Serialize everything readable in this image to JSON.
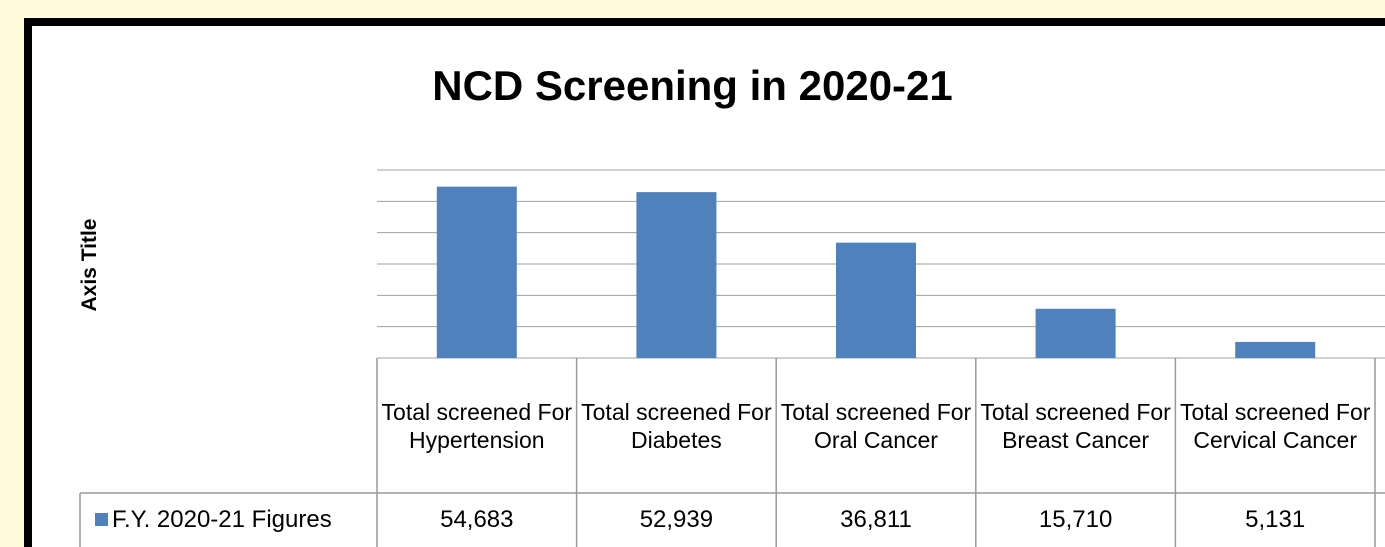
{
  "chart_data": {
    "type": "bar",
    "title": "NCD Screening in 2020-21",
    "y_axis_title": "Axis Title",
    "categories": [
      "Total screened For Hypertension",
      "Total screened For Diabetes",
      "Total screened For Oral Cancer",
      "Total screened For Breast Cancer",
      "Total screened For Cervical Cancer"
    ],
    "series": [
      {
        "name": "F.Y. 2020-21 Figures",
        "color": "#4f81bd",
        "values": [
          54683,
          52939,
          36811,
          15710,
          5131
        ],
        "value_labels": [
          "54,683",
          "52,939",
          "36,811",
          "15,710",
          "5,131"
        ]
      }
    ],
    "ylim": [
      0,
      60000
    ],
    "yticks": [
      0,
      10000,
      20000,
      30000,
      40000,
      50000,
      60000
    ],
    "grid": true
  }
}
